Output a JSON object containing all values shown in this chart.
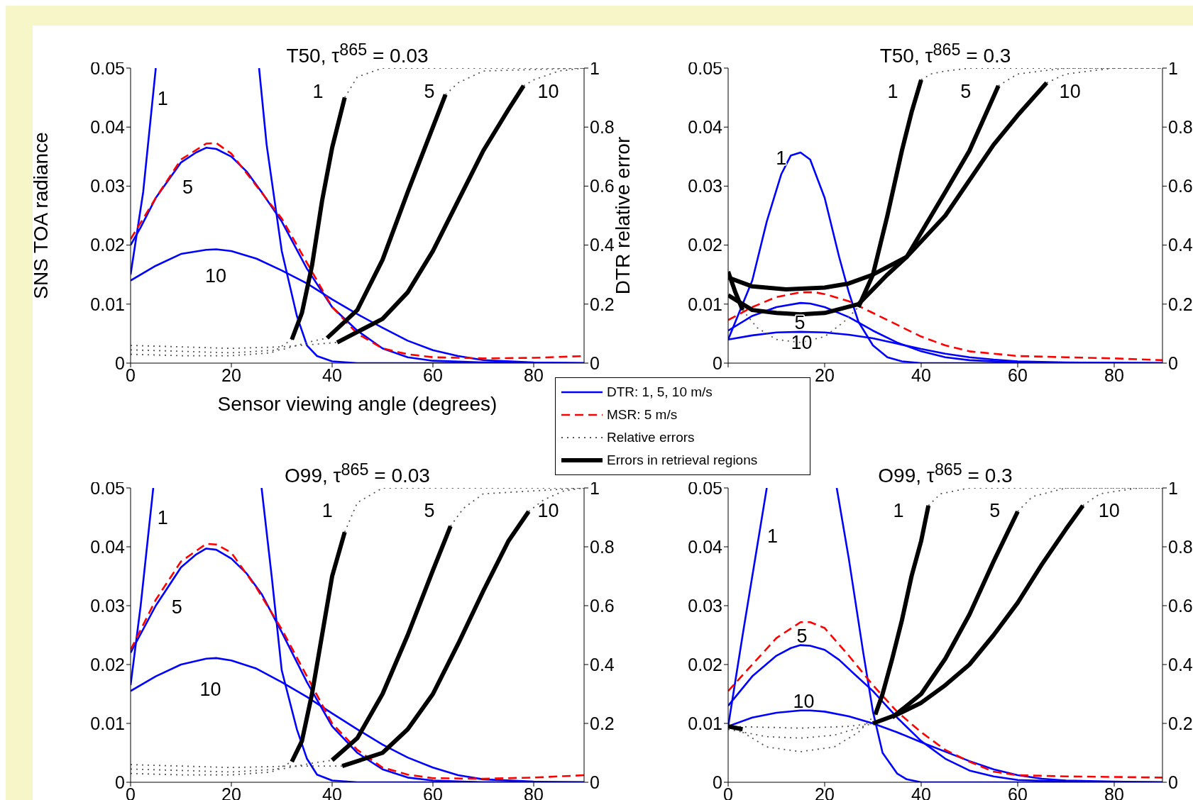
{
  "chart_data": [
    {
      "type": "line",
      "title": "T50, τ$^{865}$ = 0.03",
      "xlabel": "Sensor viewing angle (degrees)",
      "ylabel": "SNS TOA radiance",
      "y2label": "DTR relative error",
      "legend": "bottom right",
      "xlim": [
        0,
        90
      ],
      "xticks": [
        0,
        20,
        40,
        60,
        80
      ],
      "ylim": [
        0,
        0.05
      ],
      "yticks": [
        0,
        0.01,
        0.02,
        0.03,
        0.04,
        0.05
      ],
      "y2lim": [
        0,
        1
      ],
      "y2ticks": [
        0,
        0.2,
        0.4,
        0.6,
        0.8,
        1
      ],
      "series": [
        {
          "name": "DTR: 1, 5, 10 m/s",
          "color": "#0000ff",
          "x": [
            0,
            2.5,
            5,
            15,
            25.5,
            27,
            30,
            33,
            35,
            37,
            40,
            45,
            60,
            90
          ],
          "values": [
            0.015,
            0.029,
            0.05,
            null,
            0.05,
            0.037,
            0.019,
            0.008,
            0.003,
            0.0012,
            0.0003,
            0,
            0,
            0
          ]
        },
        {
          "color": "#0000ff",
          "x": [
            0,
            2,
            5,
            10,
            13,
            15,
            17,
            20,
            23,
            26,
            30,
            35,
            40,
            45,
            50,
            55,
            60,
            70,
            90
          ],
          "values": [
            0.02,
            0.023,
            0.028,
            0.034,
            0.0357,
            0.0365,
            0.0363,
            0.035,
            0.0325,
            0.029,
            0.024,
            0.016,
            0.0095,
            0.0055,
            0.0025,
            0.001,
            0.0004,
            0.0001,
            0
          ]
        },
        {
          "color": "#0000ff",
          "x": [
            0,
            5,
            10,
            15,
            17,
            20,
            25,
            30,
            35,
            40,
            45,
            50,
            55,
            60,
            65,
            70,
            80,
            90
          ],
          "values": [
            0.014,
            0.0165,
            0.0185,
            0.0192,
            0.0193,
            0.019,
            0.0177,
            0.0157,
            0.0135,
            0.0108,
            0.0083,
            0.006,
            0.0038,
            0.0022,
            0.0012,
            0.0005,
            0.0001,
            0
          ]
        },
        {
          "name": "MSR: 5 m/s",
          "color": "#ff0000",
          "line_style": "dashed",
          "x": [
            0,
            5,
            10,
            15,
            17,
            20,
            25,
            30,
            35,
            40,
            45,
            50,
            55,
            60,
            70,
            80,
            90
          ],
          "values": [
            0.021,
            0.028,
            0.0345,
            0.0372,
            0.0373,
            0.0355,
            0.03,
            0.0245,
            0.017,
            0.0095,
            0.005,
            0.0025,
            0.0015,
            0.001,
            0.0008,
            0.0009,
            0.0012
          ]
        },
        {
          "name": "Relative errors",
          "color": "#555555",
          "axis": "y2",
          "line_style": "dotted",
          "x": [
            0,
            10,
            20,
            28,
            32,
            37,
            42.5,
            45,
            50,
            90
          ],
          "values": [
            0.03,
            0.025,
            0.025,
            0.035,
            0.08,
            null,
            0.9,
            0.97,
            1,
            1
          ]
        },
        {
          "color": "#555555",
          "axis": "y2",
          "line_style": "dotted",
          "x": [
            0,
            20,
            30,
            35,
            39,
            50,
            62.5,
            65,
            70,
            90
          ],
          "values": [
            0.045,
            0.035,
            0.045,
            0.07,
            0.085,
            null,
            0.91,
            0.95,
            0.99,
            1
          ]
        },
        {
          "color": "#555555",
          "axis": "y2",
          "line_style": "dotted",
          "x": [
            0,
            20,
            30,
            41,
            60,
            78,
            80,
            85,
            90
          ],
          "values": [
            0.06,
            0.05,
            0.055,
            0.07,
            null,
            0.94,
            0.96,
            0.99,
            1
          ]
        },
        {
          "name": "Errors in retrieval regions",
          "color": "#000000",
          "axis": "y2",
          "x": [
            32,
            34,
            36,
            38,
            40,
            42.5
          ],
          "values": [
            0.08,
            0.17,
            0.33,
            0.55,
            0.73,
            0.9
          ]
        },
        {
          "color": "#000000",
          "axis": "y2",
          "x": [
            39,
            45,
            50,
            55,
            60,
            62.5
          ],
          "values": [
            0.085,
            0.18,
            0.35,
            0.58,
            0.8,
            0.91
          ]
        },
        {
          "color": "#000000",
          "axis": "y2",
          "x": [
            41,
            50,
            55,
            60,
            65,
            70,
            75,
            78
          ],
          "values": [
            0.07,
            0.15,
            0.24,
            0.38,
            0.55,
            0.72,
            0.86,
            0.94
          ]
        }
      ],
      "annotations": [
        "1",
        "5",
        "10",
        "1",
        "5",
        "10"
      ]
    },
    {
      "type": "line",
      "title": "T50, τ$^{865}$ = 0.3",
      "xlim": [
        0,
        90
      ],
      "xticks": [
        {
          "value": 0,
          "label": null
        },
        20,
        40,
        60,
        80
      ],
      "ylim": [
        0,
        0.05
      ],
      "yticks": [
        0,
        0.01,
        0.02,
        0.03,
        0.04,
        0.05
      ],
      "y2lim": [
        0,
        1
      ],
      "y2ticks": [
        0,
        0.2,
        0.4,
        0.6,
        0.8,
        1
      ],
      "series": [
        {
          "color": "#0000ff",
          "x": [
            0,
            5,
            8,
            11,
            13,
            15,
            17,
            20,
            23,
            25,
            27,
            30,
            33,
            36,
            40,
            90
          ],
          "values": [
            0.004,
            0.014,
            0.024,
            0.032,
            0.0352,
            0.0357,
            0.0345,
            0.028,
            0.018,
            0.012,
            0.007,
            0.003,
            0.001,
            0.0003,
            0,
            0
          ]
        },
        {
          "color": "#0000ff",
          "x": [
            0,
            5,
            10,
            15,
            17,
            20,
            25,
            30,
            35,
            40,
            45,
            50,
            60,
            90
          ],
          "values": [
            0.0055,
            0.008,
            0.0095,
            0.0102,
            0.0101,
            0.0095,
            0.0078,
            0.0055,
            0.0035,
            0.002,
            0.001,
            0.0005,
            0.0001,
            0
          ]
        },
        {
          "color": "#0000ff",
          "x": [
            0,
            5,
            10,
            15,
            20,
            25,
            30,
            35,
            40,
            45,
            50,
            55,
            60,
            70,
            90
          ],
          "values": [
            0.004,
            0.0047,
            0.0052,
            0.0053,
            0.0052,
            0.0048,
            0.0042,
            0.0033,
            0.0024,
            0.0016,
            0.001,
            0.0006,
            0.0003,
            0.0001,
            0
          ]
        },
        {
          "color": "#ff0000",
          "line_style": "dashed",
          "x": [
            0,
            5,
            10,
            15,
            18,
            20,
            25,
            30,
            35,
            40,
            45,
            50,
            60,
            70,
            80,
            90
          ],
          "values": [
            0.0073,
            0.0095,
            0.0112,
            0.012,
            0.012,
            0.0117,
            0.0105,
            0.0085,
            0.0065,
            0.0045,
            0.003,
            0.002,
            0.0012,
            0.001,
            0.0008,
            0.0005
          ]
        },
        {
          "color": "#555555",
          "axis": "y2",
          "line_style": "dotted",
          "x": [
            3,
            6,
            10,
            15,
            20,
            24,
            27,
            33,
            40,
            42,
            45,
            50,
            90
          ],
          "values": [
            0.18,
            0.12,
            0.08,
            0.07,
            0.09,
            0.14,
            0.19,
            null,
            0.96,
            0.98,
            0.99,
            1,
            1
          ]
        },
        {
          "color": "#555555",
          "axis": "y2",
          "line_style": "dotted",
          "x": [
            56,
            60,
            70,
            90
          ],
          "values": [
            0.94,
            0.98,
            1,
            1
          ]
        },
        {
          "color": "#555555",
          "axis": "y2",
          "line_style": "dotted",
          "x": [
            66,
            70,
            80,
            90
          ],
          "values": [
            0.95,
            0.98,
            1,
            1
          ]
        },
        {
          "color": "#000000",
          "axis": "y2",
          "x": [
            0,
            1.5,
            3,
            15,
            27,
            30,
            33,
            36,
            38,
            40
          ],
          "values": [
            0.31,
            0.24,
            0.18,
            null,
            0.19,
            0.3,
            0.5,
            0.72,
            0.85,
            0.96
          ]
        },
        {
          "color": "#000000",
          "axis": "y2",
          "x": [
            0,
            5,
            10,
            15,
            20,
            27,
            33,
            37,
            45,
            50,
            56
          ],
          "values": [
            0.23,
            0.18,
            0.17,
            0.165,
            0.17,
            0.2,
            0.3,
            0.36,
            0.58,
            0.72,
            0.94
          ]
        },
        {
          "color": "#000000",
          "axis": "y2",
          "x": [
            0,
            5,
            12,
            20,
            25,
            30,
            37,
            45,
            50,
            55,
            60,
            66
          ],
          "values": [
            0.29,
            0.26,
            0.25,
            0.256,
            0.27,
            0.3,
            0.36,
            0.5,
            0.62,
            0.74,
            0.84,
            0.95
          ]
        }
      ],
      "annotations": [
        "1",
        "5",
        "10",
        "1",
        "5",
        "10"
      ]
    },
    {
      "type": "line",
      "title": "O99, τ$^{865}$ = 0.03",
      "xlim": [
        0,
        90
      ],
      "xticks": [
        0,
        20,
        40,
        60,
        80
      ],
      "ylim": [
        0,
        0.05
      ],
      "yticks": [
        0,
        0.01,
        0.02,
        0.03,
        0.04,
        0.05
      ],
      "y2lim": [
        0,
        1
      ],
      "y2ticks": [
        0,
        0.2,
        0.4,
        0.6,
        0.8,
        1
      ],
      "series": [
        {
          "color": "#0000ff",
          "x": [
            0,
            2,
            4.5,
            15,
            26,
            28,
            30,
            33,
            35,
            37,
            40,
            45,
            90
          ],
          "values": [
            0.0165,
            0.03,
            0.05,
            null,
            0.05,
            0.035,
            0.019,
            0.009,
            0.004,
            0.0013,
            0.0003,
            0,
            0
          ]
        },
        {
          "color": "#0000ff",
          "x": [
            0,
            5,
            10,
            13,
            15,
            17,
            20,
            23,
            26,
            30,
            35,
            40,
            45,
            50,
            55,
            60,
            70,
            90
          ],
          "values": [
            0.022,
            0.03,
            0.0365,
            0.0387,
            0.0397,
            0.0395,
            0.038,
            0.0355,
            0.032,
            0.0255,
            0.017,
            0.0095,
            0.005,
            0.0022,
            0.0008,
            0.0003,
            0,
            0
          ]
        },
        {
          "color": "#0000ff",
          "x": [
            0,
            5,
            10,
            15,
            17,
            20,
            25,
            30,
            35,
            40,
            45,
            50,
            55,
            60,
            65,
            70,
            80,
            90
          ],
          "values": [
            0.0155,
            0.018,
            0.02,
            0.021,
            0.0211,
            0.0207,
            0.0193,
            0.017,
            0.0145,
            0.0117,
            0.009,
            0.0064,
            0.0042,
            0.0025,
            0.0012,
            0.0005,
            0.0001,
            0
          ]
        },
        {
          "color": "#ff0000",
          "line_style": "dashed",
          "x": [
            0,
            5,
            10,
            15,
            17,
            20,
            25,
            30,
            35,
            40,
            45,
            50,
            55,
            60,
            70,
            80,
            90
          ],
          "values": [
            0.0225,
            0.031,
            0.0375,
            0.0405,
            0.0404,
            0.039,
            0.033,
            0.026,
            0.018,
            0.01,
            0.0055,
            0.0025,
            0.0013,
            0.0007,
            0.0006,
            0.0008,
            0.0012
          ]
        },
        {
          "color": "#555555",
          "axis": "y2",
          "line_style": "dotted",
          "x": [
            0,
            10,
            20,
            28,
            32,
            37,
            42.5,
            45,
            50,
            90
          ],
          "values": [
            0.03,
            0.025,
            0.025,
            0.035,
            0.07,
            null,
            0.85,
            0.95,
            1,
            1
          ]
        },
        {
          "color": "#555555",
          "axis": "y2",
          "line_style": "dotted",
          "x": [
            0,
            20,
            30,
            36,
            40,
            50,
            63.5,
            66,
            70,
            90
          ],
          "values": [
            0.045,
            0.035,
            0.045,
            0.065,
            0.075,
            null,
            0.87,
            0.93,
            0.98,
            1
          ]
        },
        {
          "color": "#555555",
          "axis": "y2",
          "line_style": "dotted",
          "x": [
            0,
            20,
            32,
            42,
            60,
            79,
            82,
            86,
            90
          ],
          "values": [
            0.06,
            0.05,
            0.055,
            0.055,
            null,
            0.92,
            0.96,
            0.99,
            1
          ]
        },
        {
          "color": "#000000",
          "axis": "y2",
          "x": [
            32,
            34,
            36,
            38,
            40,
            42.5
          ],
          "values": [
            0.07,
            0.14,
            0.3,
            0.5,
            0.7,
            0.85
          ]
        },
        {
          "color": "#000000",
          "axis": "y2",
          "x": [
            40,
            45,
            50,
            55,
            60,
            63.5
          ],
          "values": [
            0.075,
            0.15,
            0.3,
            0.5,
            0.72,
            0.87
          ]
        },
        {
          "color": "#000000",
          "axis": "y2",
          "x": [
            42,
            50,
            55,
            60,
            65,
            70,
            75,
            79
          ],
          "values": [
            0.055,
            0.1,
            0.18,
            0.3,
            0.47,
            0.65,
            0.82,
            0.92
          ]
        }
      ],
      "annotations": [
        "1",
        "5",
        "10",
        "1",
        "5",
        "10"
      ]
    },
    {
      "type": "line",
      "title": "O99, τ$^{865}$ = 0.3",
      "xlim": [
        0,
        90
      ],
      "xticks": [
        0,
        20,
        40,
        60,
        80
      ],
      "ylim": [
        0,
        0.05
      ],
      "yticks": [
        0,
        0.01,
        0.02,
        0.03,
        0.04,
        0.05
      ],
      "y2lim": [
        0,
        1
      ],
      "y2ticks": [
        0,
        0.2,
        0.4,
        0.6,
        0.8,
        1
      ],
      "series": [
        {
          "color": "#0000ff",
          "x": [
            0,
            3,
            6,
            8,
            15,
            22.5,
            25,
            28,
            30,
            32,
            35,
            37,
            40,
            90
          ],
          "values": [
            0.0095,
            0.025,
            0.04,
            0.05,
            null,
            0.05,
            0.038,
            0.022,
            0.012,
            0.005,
            0.0015,
            0.0005,
            0,
            0
          ]
        },
        {
          "color": "#0000ff",
          "x": [
            0,
            5,
            10,
            13,
            15,
            17,
            20,
            23,
            26,
            30,
            35,
            40,
            45,
            50,
            55,
            60,
            70,
            90
          ],
          "values": [
            0.013,
            0.018,
            0.0215,
            0.0228,
            0.0233,
            0.0232,
            0.0225,
            0.0208,
            0.0185,
            0.0155,
            0.011,
            0.007,
            0.004,
            0.002,
            0.001,
            0.0004,
            0.0001,
            0
          ]
        },
        {
          "color": "#0000ff",
          "x": [
            0,
            5,
            10,
            15,
            17,
            20,
            25,
            30,
            35,
            40,
            45,
            50,
            55,
            60,
            65,
            70,
            80,
            90
          ],
          "values": [
            0.0095,
            0.011,
            0.0118,
            0.0122,
            0.0122,
            0.012,
            0.0112,
            0.01,
            0.0085,
            0.0068,
            0.0052,
            0.0036,
            0.0022,
            0.0012,
            0.0006,
            0.0003,
            0.0001,
            0
          ]
        },
        {
          "color": "#ff0000",
          "line_style": "dashed",
          "x": [
            0,
            5,
            10,
            15,
            17,
            20,
            25,
            30,
            35,
            40,
            45,
            50,
            55,
            60,
            70,
            80,
            90
          ],
          "values": [
            0.0155,
            0.02,
            0.0245,
            0.0272,
            0.0272,
            0.0262,
            0.0215,
            0.0165,
            0.012,
            0.0085,
            0.0055,
            0.0035,
            0.0018,
            0.0012,
            0.001,
            0.0009,
            0.0008
          ]
        },
        {
          "color": "#555555",
          "axis": "y2",
          "line_style": "dotted",
          "x": [
            3,
            8,
            15,
            22,
            27,
            30.5,
            36,
            41.5,
            44,
            50,
            90
          ],
          "values": [
            0.17,
            0.12,
            0.104,
            0.12,
            0.17,
            0.23,
            null,
            0.94,
            0.98,
            1,
            1
          ]
        },
        {
          "color": "#555555",
          "axis": "y2",
          "line_style": "dotted",
          "x": [
            0,
            8,
            15,
            22,
            30,
            34,
            47,
            60,
            63,
            70,
            90
          ],
          "values": [
            0.18,
            0.155,
            0.15,
            0.16,
            0.2,
            0.22,
            null,
            0.92,
            0.97,
            1,
            1
          ]
        },
        {
          "color": "#555555",
          "axis": "y2",
          "line_style": "dotted",
          "x": [
            0,
            15,
            25,
            30,
            50,
            73.5,
            77,
            85,
            90
          ],
          "values": [
            0.19,
            0.184,
            0.19,
            0.2,
            null,
            0.94,
            0.98,
            1,
            1
          ]
        },
        {
          "color": "#000000",
          "axis": "y2",
          "x": [
            0,
            3,
            15,
            30.5,
            32,
            34,
            36,
            38,
            40,
            41.5
          ],
          "values": [
            0.19,
            0.18,
            null,
            0.23,
            0.3,
            0.42,
            0.55,
            0.7,
            0.82,
            0.94
          ]
        },
        {
          "color": "#000000",
          "axis": "y2",
          "x": [
            34,
            40,
            45,
            50,
            55,
            60
          ],
          "values": [
            0.22,
            0.3,
            0.42,
            0.57,
            0.75,
            0.92
          ]
        },
        {
          "color": "#000000",
          "axis": "y2",
          "x": [
            30,
            35,
            40,
            45,
            50,
            55,
            60,
            65,
            70,
            73.5
          ],
          "values": [
            0.2,
            0.23,
            0.27,
            0.33,
            0.4,
            0.5,
            0.61,
            0.74,
            0.86,
            0.94
          ]
        }
      ],
      "annotations": [
        "1",
        "5",
        "10",
        "1",
        "5",
        "10"
      ]
    }
  ]
}
